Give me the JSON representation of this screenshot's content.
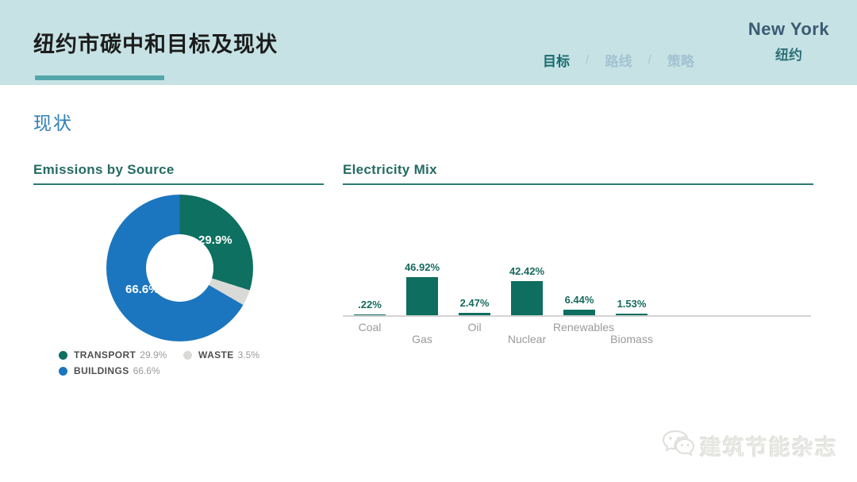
{
  "header": {
    "title": "纽约市碳中和目标及现状",
    "nav_separator": "/",
    "nav": [
      {
        "label": "目标",
        "active": true
      },
      {
        "label": "路线",
        "active": false
      },
      {
        "label": "策略",
        "active": false
      }
    ],
    "city_en": "New York",
    "city_zh": "纽约"
  },
  "section_title": "现状",
  "watermark": {
    "icon": "wechat-icon",
    "text": "建筑节能杂志"
  },
  "colors": {
    "header_bg": "#c6e2e4",
    "accent_teal": "#54a6ab",
    "nav_active": "#186b70",
    "section_blue": "#2e80b6",
    "chart_title_teal": "#256b64",
    "bar_green": "#0e6e60"
  },
  "chart_data": [
    {
      "type": "pie",
      "title": "Emissions by Source",
      "donut": true,
      "slices": [
        {
          "label": "TRANSPORT",
          "value": 29.9,
          "display": "29.9%",
          "color": "#0d7061"
        },
        {
          "label": "WASTE",
          "value": 3.5,
          "display": "3.5%",
          "color": "#d8dad7"
        },
        {
          "label": "BUILDINGS",
          "value": 66.6,
          "display": "66.6%",
          "color": "#1b76bf"
        }
      ],
      "inside_labels": {
        "transport": "29.9%",
        "buildings": "66.6%"
      },
      "legend_order": [
        "TRANSPORT",
        "WASTE",
        "BUILDINGS"
      ],
      "legend_position": "bottom"
    },
    {
      "type": "bar",
      "title": "Electricity Mix",
      "categories": [
        "Coal",
        "Gas",
        "Oil",
        "Nuclear",
        "Renewables",
        "Biomass"
      ],
      "values": [
        0.22,
        46.92,
        2.47,
        42.42,
        6.44,
        1.53
      ],
      "value_labels": [
        ".22%",
        "46.92%",
        "2.47%",
        "42.42%",
        "6.44%",
        "1.53%"
      ],
      "ylim": [
        0,
        50
      ],
      "grid": false,
      "legend_position": "none"
    }
  ]
}
